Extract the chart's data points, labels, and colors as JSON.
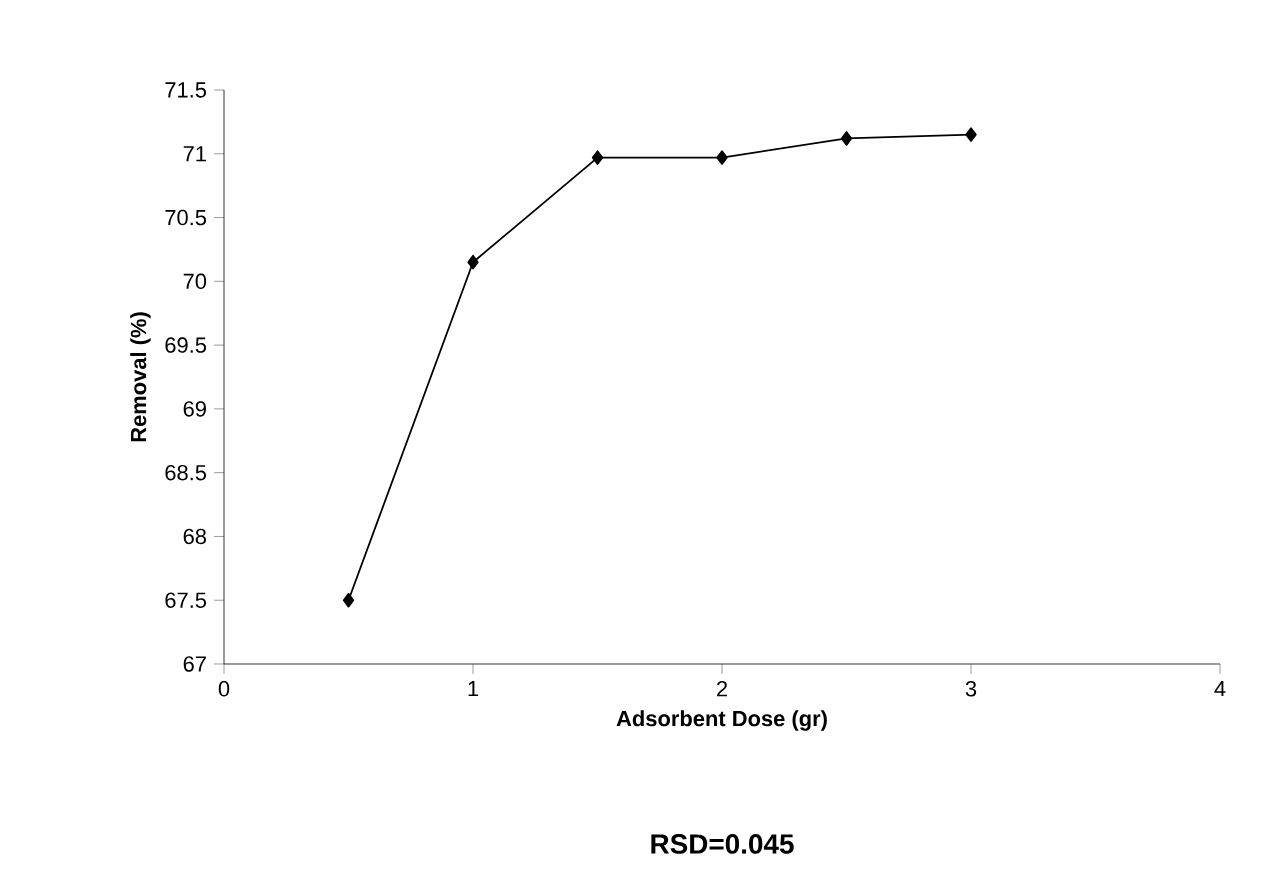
{
  "chart_data": {
    "type": "line",
    "xlabel": "Adsorbent Dose (gr)",
    "ylabel": "Removal (%)",
    "x": [
      0.5,
      1,
      1.5,
      2,
      2.5,
      3
    ],
    "series": [
      {
        "color": "#000000",
        "values": [
          67.5,
          70.15,
          70.97,
          70.97,
          71.12,
          71.15
        ]
      }
    ],
    "xlim": [
      0,
      4
    ],
    "xticks": [
      0,
      1,
      2,
      3,
      4
    ],
    "ylim": [
      67,
      71.5
    ],
    "yticks": [
      67,
      {
        "value": 67.5,
        "label": "67.5"
      },
      68,
      {
        "value": 68.5,
        "label": "68.5"
      },
      69,
      {
        "value": 69.5,
        "label": "69.5"
      },
      70,
      {
        "value": 70.5,
        "label": "70.5"
      },
      71,
      {
        "value": 71.5,
        "label": "71.5"
      }
    ],
    "marker": "diamond",
    "line_style": "solid",
    "annotations": [
      "RSD=0.045"
    ]
  }
}
